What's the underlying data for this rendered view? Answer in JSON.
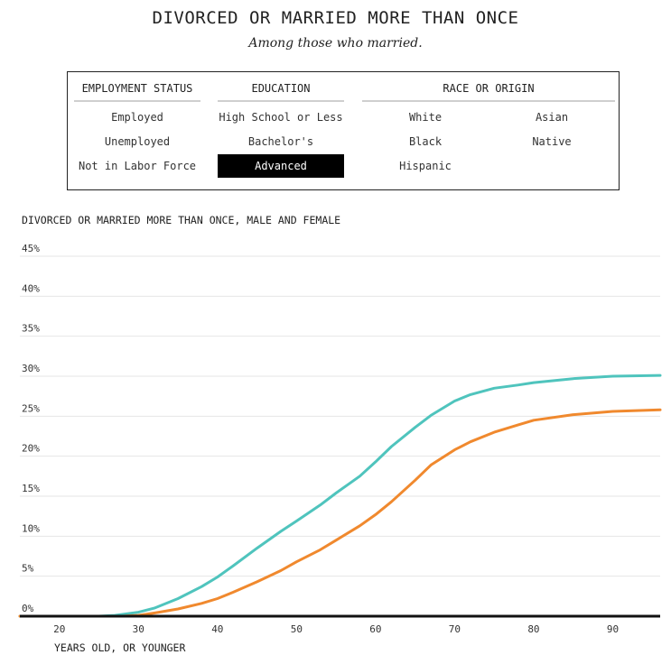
{
  "header": {
    "title": "DIVORCED OR MARRIED MORE THAN ONCE",
    "subtitle": "Among those who married."
  },
  "filters": {
    "employment": {
      "label": "EMPLOYMENT STATUS",
      "options": [
        "Employed",
        "Unemployed",
        "Not in Labor Force"
      ]
    },
    "education": {
      "label": "EDUCATION",
      "options": [
        "High School or Less",
        "Bachelor's",
        "Advanced"
      ],
      "selected": "Advanced"
    },
    "race": {
      "label": "RACE OR ORIGIN",
      "options": [
        "White",
        "Asian",
        "Black",
        "Native",
        "Hispanic"
      ]
    }
  },
  "colors": {
    "series_teal": "#4fc4bd",
    "series_orange": "#f0892e",
    "selected_bg": "#000000"
  },
  "chart_data": {
    "type": "line",
    "title": "DIVORCED OR MARRIED MORE THAN ONCE, MALE AND FEMALE",
    "xlabel": "YEARS OLD, OR YOUNGER",
    "ylabel": "",
    "xlim": [
      15,
      96
    ],
    "ylim": [
      0,
      45
    ],
    "xticks": [
      20,
      30,
      40,
      50,
      60,
      70,
      80,
      90
    ],
    "yticks": [
      0,
      5,
      10,
      15,
      20,
      25,
      30,
      35,
      40,
      45
    ],
    "ytick_labels": [
      "0%",
      "5%",
      "10%",
      "15%",
      "20%",
      "25%",
      "30%",
      "35%",
      "40%",
      "45%"
    ],
    "grid": true,
    "series": [
      {
        "color": "#4fc4bd",
        "x": [
          15,
          20,
          25,
          27,
          30,
          32,
          35,
          38,
          40,
          42,
          45,
          48,
          50,
          53,
          55,
          58,
          60,
          62,
          65,
          67,
          70,
          72,
          75,
          78,
          80,
          85,
          90,
          96
        ],
        "y": [
          0,
          0,
          0,
          0.1,
          0.5,
          1.0,
          2.2,
          3.7,
          4.9,
          6.3,
          8.5,
          10.6,
          11.9,
          13.9,
          15.4,
          17.5,
          19.3,
          21.2,
          23.6,
          25.1,
          26.9,
          27.7,
          28.5,
          28.9,
          29.2,
          29.7,
          30.0,
          30.1
        ]
      },
      {
        "color": "#f0892e",
        "x": [
          15,
          20,
          25,
          28,
          30,
          32,
          35,
          38,
          40,
          42,
          45,
          48,
          50,
          53,
          55,
          58,
          60,
          62,
          65,
          67,
          70,
          72,
          75,
          78,
          80,
          85,
          90,
          96
        ],
        "y": [
          0,
          0,
          0,
          0,
          0.1,
          0.4,
          0.9,
          1.6,
          2.2,
          3.0,
          4.3,
          5.7,
          6.8,
          8.3,
          9.5,
          11.3,
          12.7,
          14.3,
          17.0,
          18.9,
          20.8,
          21.8,
          23.0,
          23.9,
          24.5,
          25.2,
          25.6,
          25.8
        ]
      }
    ]
  }
}
